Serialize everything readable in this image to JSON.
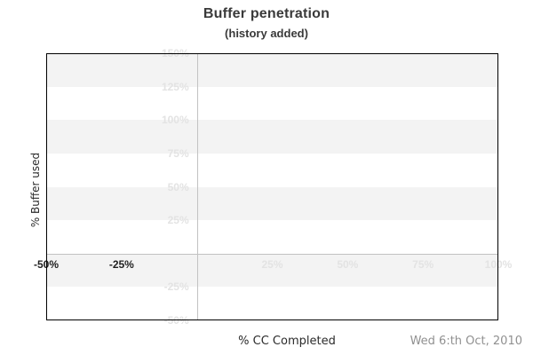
{
  "chart_data": {
    "type": "line",
    "title": "Buffer penetration",
    "subtitle": "(history added)",
    "xlabel": "% CC Completed",
    "ylabel": "% Buffer used",
    "date_note": "Wed 6:th Oct, 2010",
    "xlim": [
      -50,
      100
    ],
    "ylim": [
      -50,
      150
    ],
    "x_ticks": [
      {
        "value": -50,
        "label": "-50%",
        "strong": true
      },
      {
        "value": -25,
        "label": "-25%",
        "strong": true
      },
      {
        "value": 25,
        "label": "25%",
        "strong": false
      },
      {
        "value": 50,
        "label": "50%",
        "strong": false
      },
      {
        "value": 75,
        "label": "75%",
        "strong": false
      },
      {
        "value": 100,
        "label": "100%",
        "strong": false
      }
    ],
    "y_ticks": [
      {
        "value": 150,
        "label": "150%"
      },
      {
        "value": 125,
        "label": "125%"
      },
      {
        "value": 100,
        "label": "100%"
      },
      {
        "value": 75,
        "label": "75%"
      },
      {
        "value": 50,
        "label": "50%"
      },
      {
        "value": 25,
        "label": "25%"
      },
      {
        "value": -25,
        "label": "-25%"
      },
      {
        "value": -50,
        "label": "-50%"
      }
    ],
    "series": [],
    "grid": {
      "band_step": 25,
      "alternating_bands": true,
      "zero_lines": true,
      "legend": "none"
    },
    "colors": {
      "band": "#f3f3f3",
      "zero_line": "#c2c2c2",
      "faint_label": "#e3e3e3",
      "strong_label": "#1f1f1f",
      "plot_border": "#000000",
      "title": "#3a3a3a",
      "axis_title": "#2b2b2b",
      "date": "#909090",
      "background": "#ffffff"
    }
  }
}
